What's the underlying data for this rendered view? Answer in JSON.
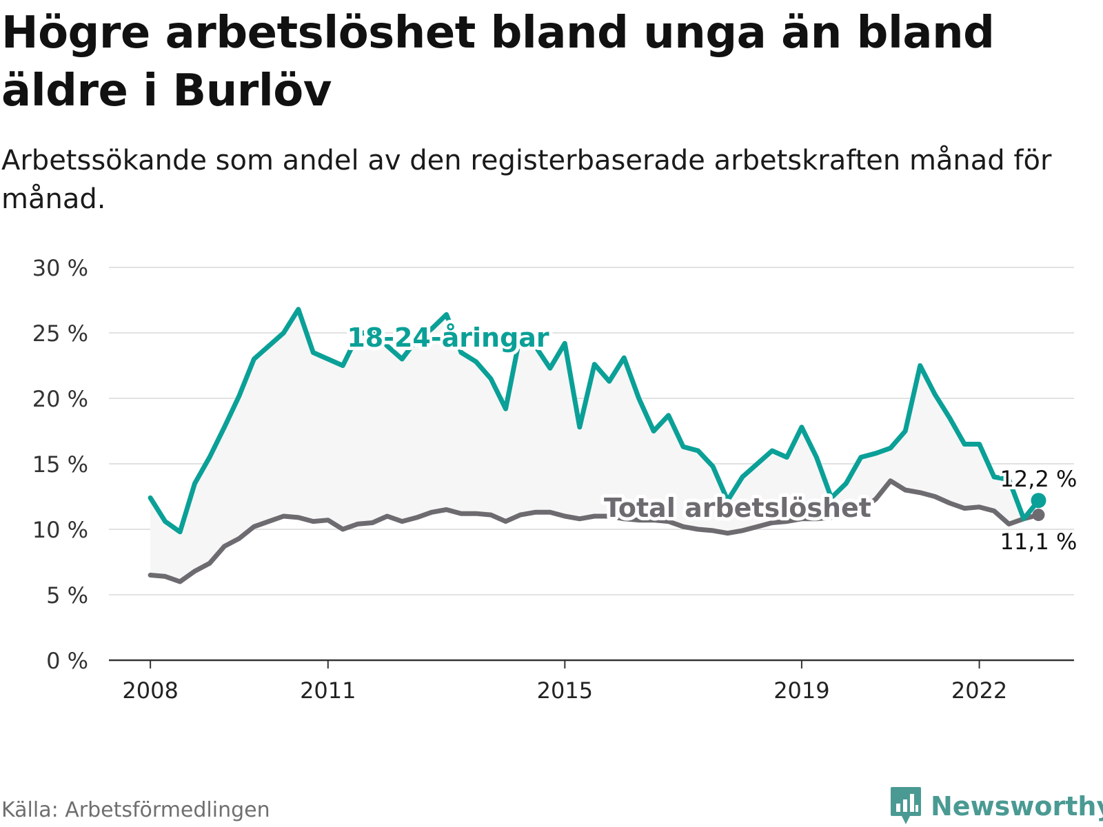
{
  "title": "Högre arbetslöshet bland unga än bland äldre i Burlöv",
  "subtitle": "Arbetssökande som andel av den registerbaserade arbetskraften månad för månad.",
  "source": "Källa: Arbetsförmedlingen",
  "brand": {
    "name": "Newsworthy",
    "icon": "newsworthy-logo-icon"
  },
  "colors": {
    "youth": "#0aa097",
    "total": "#6d6b70",
    "area": "#f6f6f6",
    "grid": "#e2e2e2",
    "axis": "#333333"
  },
  "chart_data": {
    "type": "line",
    "title": "Högre arbetslöshet bland unga än bland äldre i Burlöv",
    "xlabel": "",
    "ylabel": "",
    "ylim": [
      0,
      30
    ],
    "y_ticks": [
      0,
      5,
      10,
      15,
      20,
      25,
      30
    ],
    "y_tick_labels": [
      "0 %",
      "5 %",
      "10 %",
      "15 %",
      "20 %",
      "25 %",
      "30 %"
    ],
    "x_range": [
      2007.3,
      2023.6
    ],
    "x_ticks": [
      2008,
      2011,
      2015,
      2019,
      2022
    ],
    "x_tick_labels": [
      "2008",
      "2011",
      "2015",
      "2019",
      "2022"
    ],
    "grid": true,
    "series": [
      {
        "name": "18-24-åringar",
        "label": "18-24-åringar",
        "end_label": "12,2 %",
        "end_value": 12.2,
        "x": [
          2008.0,
          2008.25,
          2008.5,
          2008.75,
          2009.0,
          2009.25,
          2009.5,
          2009.75,
          2010.0,
          2010.25,
          2010.5,
          2010.75,
          2011.0,
          2011.25,
          2011.5,
          2011.75,
          2012.0,
          2012.25,
          2012.5,
          2012.75,
          2013.0,
          2013.25,
          2013.5,
          2013.75,
          2014.0,
          2014.25,
          2014.5,
          2014.75,
          2015.0,
          2015.25,
          2015.5,
          2015.75,
          2016.0,
          2016.25,
          2016.5,
          2016.75,
          2017.0,
          2017.25,
          2017.5,
          2017.75,
          2018.0,
          2018.25,
          2018.5,
          2018.75,
          2019.0,
          2019.25,
          2019.5,
          2019.75,
          2020.0,
          2020.25,
          2020.5,
          2020.75,
          2021.0,
          2021.25,
          2021.5,
          2021.75,
          2022.0,
          2022.25,
          2022.5,
          2022.75,
          2023.0
        ],
        "values": [
          12.4,
          10.6,
          9.8,
          13.5,
          15.5,
          17.8,
          20.2,
          23.0,
          24.0,
          25.0,
          26.8,
          23.5,
          23.0,
          22.5,
          24.8,
          25.3,
          24.0,
          23.0,
          24.5,
          25.3,
          26.4,
          23.5,
          22.8,
          21.5,
          19.2,
          24.9,
          24.0,
          22.3,
          24.2,
          17.8,
          22.6,
          21.3,
          23.1,
          20.0,
          17.5,
          18.7,
          16.3,
          16.0,
          14.8,
          12.2,
          14.0,
          15.0,
          16.0,
          15.5,
          17.8,
          15.5,
          12.4,
          13.5,
          15.5,
          15.8,
          16.2,
          17.5,
          22.5,
          20.3,
          18.5,
          16.5,
          16.5,
          14.0,
          13.8,
          10.8,
          12.2
        ]
      },
      {
        "name": "Total arbetslöshet",
        "label": "Total arbetslöshet",
        "end_label": "11,1 %",
        "end_value": 11.1,
        "x": [
          2008.0,
          2008.25,
          2008.5,
          2008.75,
          2009.0,
          2009.25,
          2009.5,
          2009.75,
          2010.0,
          2010.25,
          2010.5,
          2010.75,
          2011.0,
          2011.25,
          2011.5,
          2011.75,
          2012.0,
          2012.25,
          2012.5,
          2012.75,
          2013.0,
          2013.25,
          2013.5,
          2013.75,
          2014.0,
          2014.25,
          2014.5,
          2014.75,
          2015.0,
          2015.25,
          2015.5,
          2015.75,
          2016.0,
          2016.25,
          2016.5,
          2016.75,
          2017.0,
          2017.25,
          2017.5,
          2017.75,
          2018.0,
          2018.25,
          2018.5,
          2018.75,
          2019.0,
          2019.25,
          2019.5,
          2019.75,
          2020.0,
          2020.25,
          2020.5,
          2020.75,
          2021.0,
          2021.25,
          2021.5,
          2021.75,
          2022.0,
          2022.25,
          2022.5,
          2022.75,
          2023.0
        ],
        "values": [
          6.5,
          6.4,
          6.0,
          6.8,
          7.4,
          8.7,
          9.3,
          10.2,
          10.6,
          11.0,
          10.9,
          10.6,
          10.7,
          10.0,
          10.4,
          10.5,
          11.0,
          10.6,
          10.9,
          11.3,
          11.5,
          11.2,
          11.2,
          11.1,
          10.6,
          11.1,
          11.3,
          11.3,
          11.0,
          10.8,
          11.0,
          11.0,
          10.8,
          10.7,
          10.7,
          10.6,
          10.2,
          10.0,
          9.9,
          9.7,
          9.9,
          10.2,
          10.5,
          10.6,
          10.8,
          10.8,
          10.9,
          11.2,
          11.5,
          12.3,
          13.7,
          13.0,
          12.8,
          12.5,
          12.0,
          11.6,
          11.7,
          11.4,
          10.4,
          10.8,
          11.1
        ]
      }
    ],
    "area_between_series": true
  }
}
